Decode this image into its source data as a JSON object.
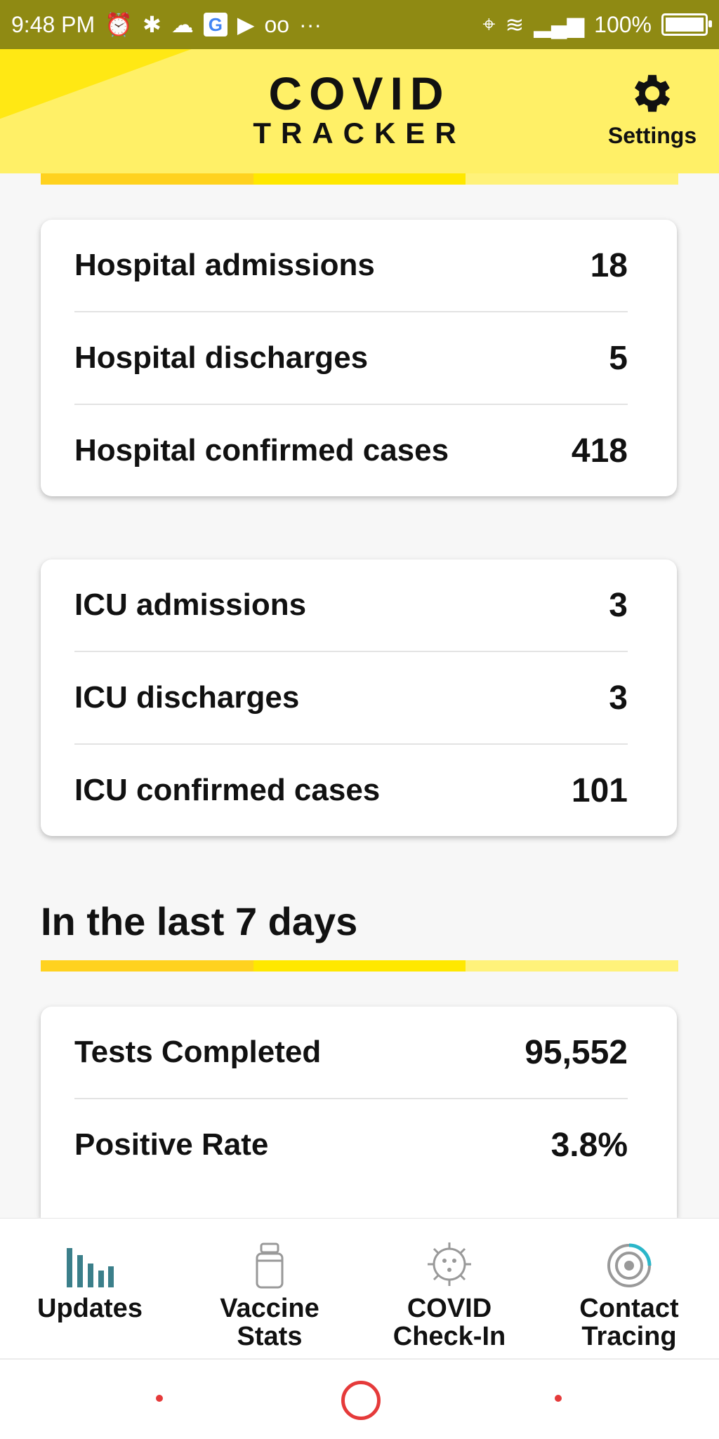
{
  "status_bar": {
    "time": "9:48 PM",
    "battery": "100%"
  },
  "header": {
    "logo_top": "COVID",
    "logo_bottom": "TRACKER",
    "settings_label": "Settings"
  },
  "hospital_card": {
    "rows": [
      {
        "label": "Hospital admissions",
        "value": "18"
      },
      {
        "label": "Hospital discharges",
        "value": "5"
      },
      {
        "label": "Hospital confirmed cases",
        "value": "418"
      }
    ]
  },
  "icu_card": {
    "rows": [
      {
        "label": "ICU admissions",
        "value": "3"
      },
      {
        "label": "ICU discharges",
        "value": "3"
      },
      {
        "label": "ICU confirmed cases",
        "value": "101"
      }
    ]
  },
  "last7": {
    "title": "In the last 7 days",
    "rows": [
      {
        "label": "Tests Completed",
        "value": "95,552"
      },
      {
        "label": "Positive Rate",
        "value": "3.8%"
      }
    ]
  },
  "bottom_nav": {
    "items": [
      {
        "label_line1": "Updates",
        "label_line2": "",
        "icon": "bar-chart-icon",
        "active": true
      },
      {
        "label_line1": "Vaccine",
        "label_line2": "Stats",
        "icon": "vial-icon",
        "active": false
      },
      {
        "label_line1": "COVID",
        "label_line2": "Check-In",
        "icon": "virus-icon",
        "active": false
      },
      {
        "label_line1": "Contact",
        "label_line2": "Tracing",
        "icon": "target-icon",
        "active": false
      }
    ]
  },
  "colors": {
    "status_bar": "#8f8a13",
    "header": "#fff067",
    "accent_teal": "#3b7f8a",
    "nav_red": "#e53a3a"
  }
}
